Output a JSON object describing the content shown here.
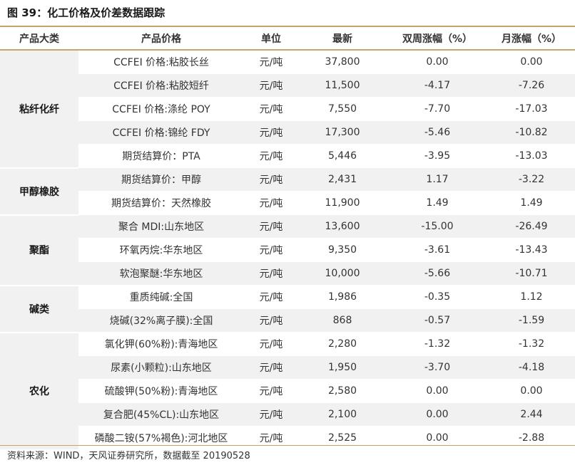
{
  "title": "图 39：化工价格及价差数据跟踪",
  "source": "资料来源：WIND，天风证券研究所，数据截至 20190528",
  "chart_data": {
    "type": "table",
    "columns": [
      "产品大类",
      "产品价格",
      "单位",
      "最新",
      "双周涨幅（%）",
      "月涨幅（%）"
    ],
    "groups": [
      {
        "category": "粘纤化纤",
        "rows": [
          [
            "CCFEI 价格:粘胶长丝",
            "元/吨",
            "37,800",
            "0.00",
            "0.00"
          ],
          [
            "CCFEI 价格:粘胶短纤",
            "元/吨",
            "11,500",
            "-4.17",
            "-7.26"
          ],
          [
            "CCFEI 价格:涤纶 POY",
            "元/吨",
            "7,550",
            "-7.70",
            "-17.03"
          ],
          [
            "CCFEI 价格:锦纶 FDY",
            "元/吨",
            "17,300",
            "-5.46",
            "-10.82"
          ],
          [
            "期货结算价：PTA",
            "元/吨",
            "5,446",
            "-3.95",
            "-13.03"
          ]
        ]
      },
      {
        "category": "甲醇橡胶",
        "rows": [
          [
            "期货结算价：甲醇",
            "元/吨",
            "2,431",
            "1.17",
            "-3.22"
          ],
          [
            "期货结算价：天然橡胶",
            "元/吨",
            "11,900",
            "1.49",
            "1.49"
          ]
        ]
      },
      {
        "category": "聚酯",
        "rows": [
          [
            "聚合 MDI:山东地区",
            "元/吨",
            "13,600",
            "-15.00",
            "-26.49"
          ],
          [
            "环氧丙烷:华东地区",
            "元/吨",
            "9,350",
            "-3.61",
            "-13.43"
          ],
          [
            "软泡聚醚:华东地区",
            "元/吨",
            "10,000",
            "-5.66",
            "-10.71"
          ]
        ]
      },
      {
        "category": "碱类",
        "rows": [
          [
            "重质纯碱:全国",
            "元/吨",
            "1,986",
            "-0.35",
            "1.12"
          ],
          [
            "烧碱(32%离子膜):全国",
            "元/吨",
            "868",
            "-0.57",
            "-1.59"
          ]
        ]
      },
      {
        "category": "农化",
        "rows": [
          [
            "氯化钾(60%粉):青海地区",
            "元/吨",
            "2,280",
            "-1.32",
            "-1.32"
          ],
          [
            "尿素(小颗粒):山东地区",
            "元/吨",
            "1,950",
            "-3.70",
            "-4.18"
          ],
          [
            "硫酸钾(50%粉):青海地区",
            "元/吨",
            "2,580",
            "0.00",
            "0.00"
          ],
          [
            "复合肥(45%CL):山东地区",
            "元/吨",
            "2,100",
            "0.00",
            "2.44"
          ],
          [
            "磷酸二铵(57%褐色):河北地区",
            "元/吨",
            "2,525",
            "0.00",
            "-2.88"
          ]
        ]
      }
    ]
  }
}
